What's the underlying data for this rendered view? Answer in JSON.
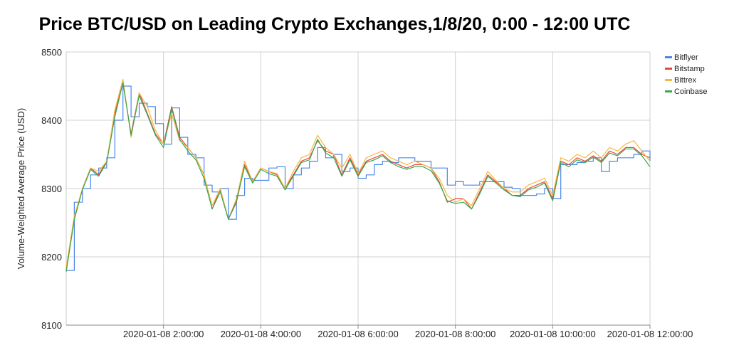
{
  "chart_data": {
    "type": "line",
    "title": "Price BTC/USD on Leading Crypto Exchanges,1/8/20, 0:00 - 12:00 UTC",
    "xlabel": "",
    "ylabel": "Volume-Weighted Average Price (USD)",
    "ylim": [
      8100,
      8500
    ],
    "yticks": [
      "8100",
      "8200",
      "8300",
      "8400",
      "8500"
    ],
    "xlim": [
      "2020-01-08 00:00:00",
      "2020-01-08 12:00:00"
    ],
    "xticks": [
      "2020-01-08 2:00:00",
      "2020-01-08 4:00:00",
      "2020-01-08 6:00:00",
      "2020-01-08 8:00:00",
      "2020-01-08 10:00:00",
      "2020-01-08 12:00:00"
    ],
    "grid": true,
    "legend_position": "top-right",
    "x": [
      "00:00",
      "00:10",
      "00:20",
      "00:30",
      "00:40",
      "00:50",
      "01:00",
      "01:10",
      "01:20",
      "01:30",
      "01:40",
      "01:50",
      "02:00",
      "02:10",
      "02:20",
      "02:30",
      "02:40",
      "02:50",
      "03:00",
      "03:10",
      "03:20",
      "03:30",
      "03:40",
      "03:50",
      "04:00",
      "04:10",
      "04:20",
      "04:30",
      "04:40",
      "04:50",
      "05:00",
      "05:10",
      "05:20",
      "05:30",
      "05:40",
      "05:50",
      "06:00",
      "06:10",
      "06:20",
      "06:30",
      "06:40",
      "06:50",
      "07:00",
      "07:10",
      "07:20",
      "07:30",
      "07:40",
      "07:50",
      "08:00",
      "08:10",
      "08:20",
      "08:30",
      "08:40",
      "08:50",
      "09:00",
      "09:10",
      "09:20",
      "09:30",
      "09:40",
      "09:50",
      "10:00",
      "10:10",
      "10:20",
      "10:30",
      "10:40",
      "10:50",
      "11:00",
      "11:10",
      "11:20",
      "11:30",
      "11:40",
      "11:50",
      "12:00"
    ],
    "series": [
      {
        "name": "Bitflyer",
        "color": "#4a86e8",
        "step": true,
        "values": [
          8180,
          8280,
          8300,
          8320,
          8330,
          8345,
          8400,
          8450,
          8405,
          8425,
          8420,
          8395,
          8365,
          8418,
          8375,
          8350,
          8345,
          8305,
          8295,
          8300,
          8255,
          8290,
          8315,
          8312,
          8312,
          8330,
          8332,
          8300,
          8320,
          8330,
          8340,
          8360,
          8345,
          8350,
          8325,
          8330,
          8315,
          8320,
          8335,
          8340,
          8338,
          8345,
          8345,
          8340,
          8340,
          8330,
          8330,
          8305,
          8310,
          8305,
          8305,
          8310,
          8310,
          8310,
          8302,
          8300,
          8290,
          8290,
          8292,
          8300,
          8285,
          8335,
          8335,
          8338,
          8340,
          8345,
          8325,
          8340,
          8345,
          8345,
          8350,
          8355,
          8340
        ]
      },
      {
        "name": "Bitstamp",
        "color": "#e8453c",
        "step": false,
        "values": [
          8180,
          8255,
          8300,
          8330,
          8320,
          8340,
          8410,
          8455,
          8380,
          8440,
          8410,
          8380,
          8365,
          8420,
          8375,
          8360,
          8345,
          8320,
          8270,
          8300,
          8255,
          8280,
          8335,
          8310,
          8330,
          8325,
          8320,
          8300,
          8320,
          8340,
          8345,
          8370,
          8355,
          8350,
          8320,
          8345,
          8320,
          8340,
          8345,
          8350,
          8340,
          8335,
          8330,
          8335,
          8335,
          8330,
          8310,
          8280,
          8285,
          8285,
          8270,
          8295,
          8320,
          8310,
          8300,
          8290,
          8290,
          8300,
          8305,
          8310,
          8285,
          8340,
          8335,
          8345,
          8340,
          8348,
          8340,
          8355,
          8350,
          8360,
          8360,
          8350,
          8345
        ]
      },
      {
        "name": "Bittrex",
        "color": "#f6b73c",
        "step": false,
        "values": [
          8185,
          8260,
          8300,
          8330,
          8325,
          8340,
          8415,
          8460,
          8375,
          8440,
          8420,
          8385,
          8365,
          8410,
          8370,
          8360,
          8345,
          8320,
          8275,
          8300,
          8255,
          8285,
          8340,
          8310,
          8330,
          8325,
          8322,
          8300,
          8325,
          8345,
          8350,
          8378,
          8360,
          8350,
          8330,
          8350,
          8322,
          8345,
          8350,
          8355,
          8345,
          8340,
          8335,
          8340,
          8335,
          8330,
          8315,
          8290,
          8280,
          8285,
          8275,
          8300,
          8325,
          8312,
          8300,
          8295,
          8295,
          8305,
          8310,
          8315,
          8290,
          8345,
          8340,
          8350,
          8345,
          8355,
          8345,
          8360,
          8355,
          8365,
          8370,
          8355,
          8340
        ]
      },
      {
        "name": "Coinbase",
        "color": "#34a853",
        "step": false,
        "values": [
          8178,
          8255,
          8298,
          8328,
          8318,
          8338,
          8405,
          8455,
          8378,
          8436,
          8408,
          8378,
          8360,
          8418,
          8372,
          8355,
          8342,
          8315,
          8270,
          8295,
          8255,
          8282,
          8332,
          8308,
          8328,
          8322,
          8318,
          8298,
          8318,
          8338,
          8342,
          8372,
          8352,
          8345,
          8318,
          8342,
          8318,
          8338,
          8342,
          8348,
          8338,
          8332,
          8328,
          8332,
          8332,
          8326,
          8308,
          8282,
          8278,
          8280,
          8270,
          8292,
          8318,
          8308,
          8298,
          8290,
          8288,
          8298,
          8302,
          8308,
          8282,
          8338,
          8332,
          8342,
          8338,
          8346,
          8338,
          8352,
          8348,
          8358,
          8358,
          8348,
          8332
        ]
      }
    ]
  }
}
